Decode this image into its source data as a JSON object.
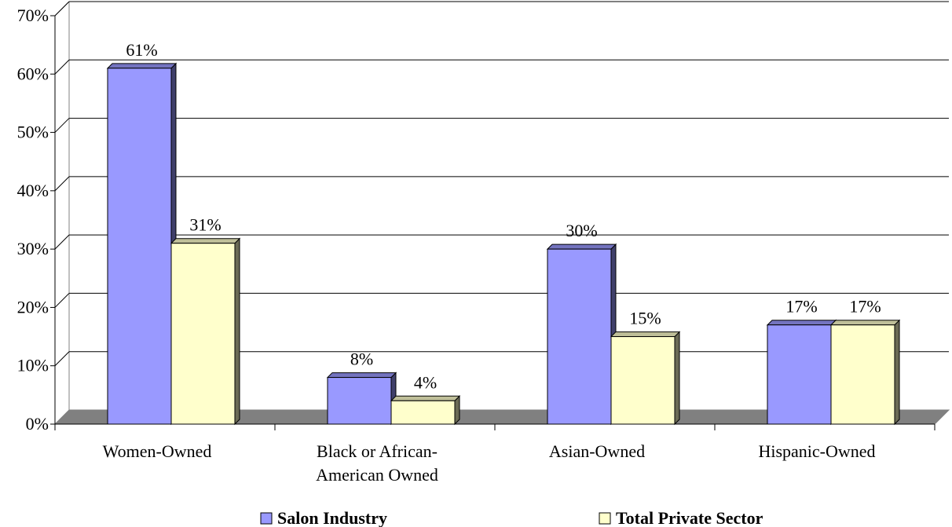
{
  "chart_data": {
    "type": "bar",
    "categories": [
      "Women-Owned",
      "Black or African-American Owned",
      "Asian-Owned",
      "Hispanic-Owned"
    ],
    "category_lines": [
      [
        "Women-Owned"
      ],
      [
        "Black or African-",
        "American Owned"
      ],
      [
        "Asian-Owned"
      ],
      [
        "Hispanic-Owned"
      ]
    ],
    "series": [
      {
        "name": "Salon Industry",
        "values": [
          61,
          8,
          30,
          17
        ],
        "labels": [
          "61%",
          "8%",
          "30%",
          "17%"
        ],
        "color": "#9999ff"
      },
      {
        "name": "Total Private Sector",
        "values": [
          31,
          4,
          15,
          17
        ],
        "labels": [
          "31%",
          "4%",
          "15%",
          "17%"
        ],
        "color": "#ffffcc"
      }
    ],
    "ylim": [
      0,
      70
    ],
    "yticks": [
      "0%",
      "10%",
      "20%",
      "30%",
      "40%",
      "50%",
      "60%",
      "70%"
    ],
    "ytick_values": [
      0,
      10,
      20,
      30,
      40,
      50,
      60,
      70
    ],
    "grid": true,
    "three_d": true,
    "legend_position": "bottom",
    "title": "",
    "xlabel": "",
    "ylabel": ""
  }
}
